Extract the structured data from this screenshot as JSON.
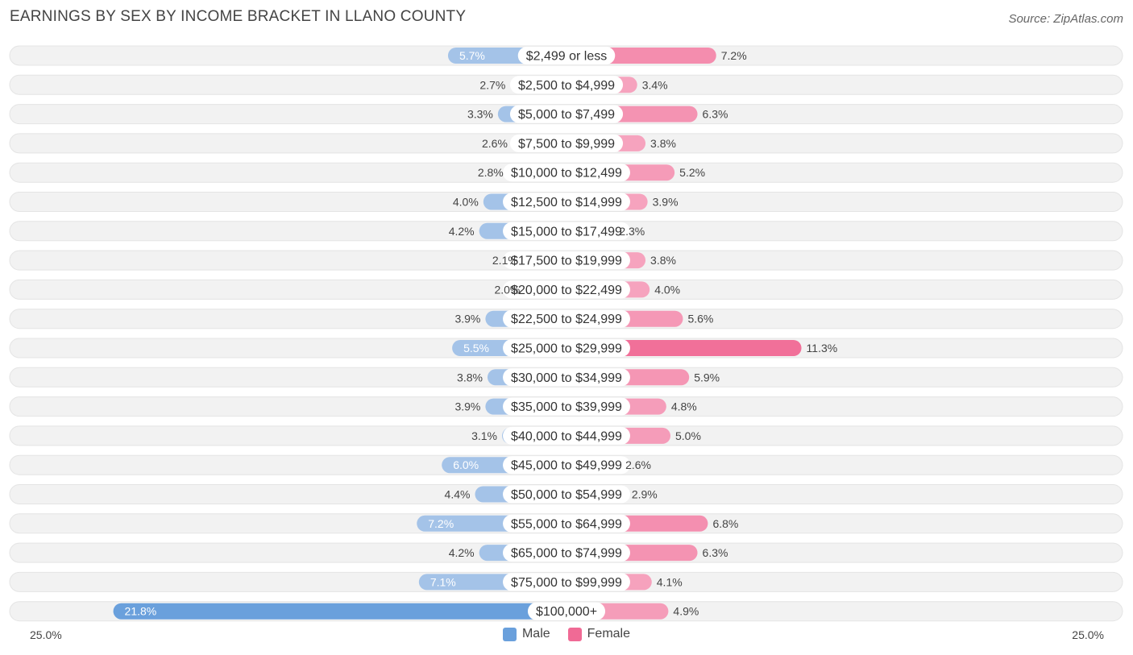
{
  "header": {
    "title": "EARNINGS BY SEX BY INCOME BRACKET IN LLANO COUNTY",
    "source": "Source: ZipAtlas.com"
  },
  "colors": {
    "male": "#a4c3e8",
    "male_strong": "#6aa0dc",
    "female": "#f6a3be",
    "female_strong": "#f06a95",
    "row_bg": "#f2f2f2"
  },
  "chart_data": {
    "type": "bar",
    "orientation": "horizontal-diverging",
    "title": "EARNINGS BY SEX BY INCOME BRACKET IN LLANO COUNTY",
    "categories": [
      "$2,499 or less",
      "$2,500 to $4,999",
      "$5,000 to $7,499",
      "$7,500 to $9,999",
      "$10,000 to $12,499",
      "$12,500 to $14,999",
      "$15,000 to $17,499",
      "$17,500 to $19,999",
      "$20,000 to $22,499",
      "$22,500 to $24,999",
      "$25,000 to $29,999",
      "$30,000 to $34,999",
      "$35,000 to $39,999",
      "$40,000 to $44,999",
      "$45,000 to $49,999",
      "$50,000 to $54,999",
      "$55,000 to $64,999",
      "$65,000 to $74,999",
      "$75,000 to $99,999",
      "$100,000+"
    ],
    "series": [
      {
        "name": "Male",
        "values": [
          5.7,
          2.7,
          3.3,
          2.6,
          2.8,
          4.0,
          4.2,
          2.1,
          2.0,
          3.9,
          5.5,
          3.8,
          3.9,
          3.1,
          6.0,
          4.4,
          7.2,
          4.2,
          7.1,
          21.8
        ],
        "labels": [
          "5.7%",
          "2.7%",
          "3.3%",
          "2.6%",
          "2.8%",
          "4.0%",
          "4.2%",
          "2.1%",
          "2.0%",
          "3.9%",
          "5.5%",
          "3.8%",
          "3.9%",
          "3.1%",
          "6.0%",
          "4.4%",
          "7.2%",
          "4.2%",
          "7.1%",
          "21.8%"
        ]
      },
      {
        "name": "Female",
        "values": [
          7.2,
          3.4,
          6.3,
          3.8,
          5.2,
          3.9,
          2.3,
          3.8,
          4.0,
          5.6,
          11.3,
          5.9,
          4.8,
          5.0,
          2.6,
          2.9,
          6.8,
          6.3,
          4.1,
          4.9
        ],
        "labels": [
          "7.2%",
          "3.4%",
          "6.3%",
          "3.8%",
          "5.2%",
          "3.9%",
          "2.3%",
          "3.8%",
          "4.0%",
          "5.6%",
          "11.3%",
          "5.9%",
          "4.8%",
          "5.0%",
          "2.6%",
          "2.9%",
          "6.8%",
          "6.3%",
          "4.1%",
          "4.9%"
        ]
      }
    ],
    "xlim": [
      -25,
      25
    ],
    "axis_labels": {
      "left": "25.0%",
      "right": "25.0%"
    },
    "legend_position": "bottom-center"
  },
  "legend": {
    "male_label": "Male",
    "female_label": "Female"
  }
}
